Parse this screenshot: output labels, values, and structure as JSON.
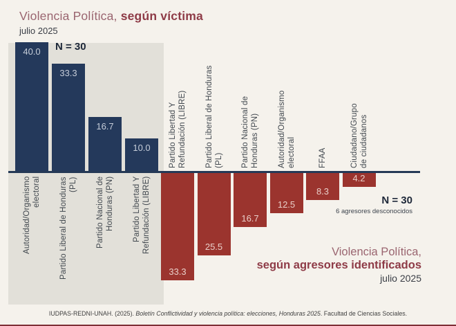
{
  "top_chart": {
    "title_regular": "Violencia Política, ",
    "title_bold": "según víctima",
    "subtitle": "julio 2025",
    "n_label": "N = 30"
  },
  "bottom_chart": {
    "title_regular": "Violencia Política,",
    "title_bold": "según agresores identificados",
    "subtitle": "julio 2025",
    "n_label": "N = 30",
    "n_note": "6 agresores desconocidos"
  },
  "footer": {
    "source_prefix": "IUDPAS-REDNI-UNAH. (2025). ",
    "source_italic": "Boletín Conflictividad y violencia política: elecciones, Honduras 2025",
    "source_suffix": ". Facultad de Ciencias Sociales."
  },
  "colors": {
    "background": "#f5f2ec",
    "panel_gray": "#e2e0d9",
    "bar_navy": "#24395b",
    "bar_red": "#9b342e",
    "axis_navy": "#253956",
    "title_mauve": "#9a6570",
    "title_dark_red": "#8e3b47",
    "bottom_border_red": "#7e2f36"
  },
  "chart_data": [
    {
      "type": "bar",
      "title": "Violencia Política, según víctima",
      "subtitle": "julio 2025",
      "n": 30,
      "orientation": "up",
      "unit": "percent",
      "ylim": [
        0,
        40
      ],
      "categories": [
        "Autoridad/Organismo electoral",
        "Partido Liberal de Honduras (PL)",
        "Partido Nacional de Honduras (PN)",
        "Partido Libertad Y Refundación (LIBRE)"
      ],
      "categories_display": [
        "Autoridad/Organismo\nelectoral",
        "Partido Liberal de Honduras\n(PL)",
        "Partido Nacional de\nHonduras (PN)",
        "Partido Libertad Y\nRefundación (LIBRE)"
      ],
      "values": [
        40.0,
        33.3,
        16.7,
        10.0
      ],
      "value_labels": [
        "40.0",
        "33.3",
        "16.7",
        "10.0"
      ]
    },
    {
      "type": "bar",
      "title": "Violencia Política, según agresores identificados",
      "subtitle": "julio 2025",
      "n": 30,
      "note": "6 agresores desconocidos",
      "orientation": "down",
      "unit": "percent",
      "ylim": [
        0,
        33.3
      ],
      "categories": [
        "Partido Libertad Y Refundación (LIBRE)",
        "Partido Liberal de Honduras (PL)",
        "Partido Nacional de Honduras (PN)",
        "Autoridad/Organismo electoral",
        "FFAA",
        "Ciudadano/Grupo de ciudadanos"
      ],
      "categories_display": [
        "Partido Libertad Y\nRefundación (LIBRE)",
        "Partido Liberal de Honduras\n(PL)",
        "Partido Nacional de\nHonduras (PN)",
        "Autoridad/Organismo\nelectoral",
        "FFAA",
        "Ciudadano/Grupo\nde ciudadanos"
      ],
      "values": [
        33.3,
        25.5,
        16.7,
        12.5,
        8.3,
        4.2
      ],
      "value_labels": [
        "33.3",
        "25.5",
        "16.7",
        "12.5",
        "8.3",
        "4.2"
      ]
    }
  ]
}
